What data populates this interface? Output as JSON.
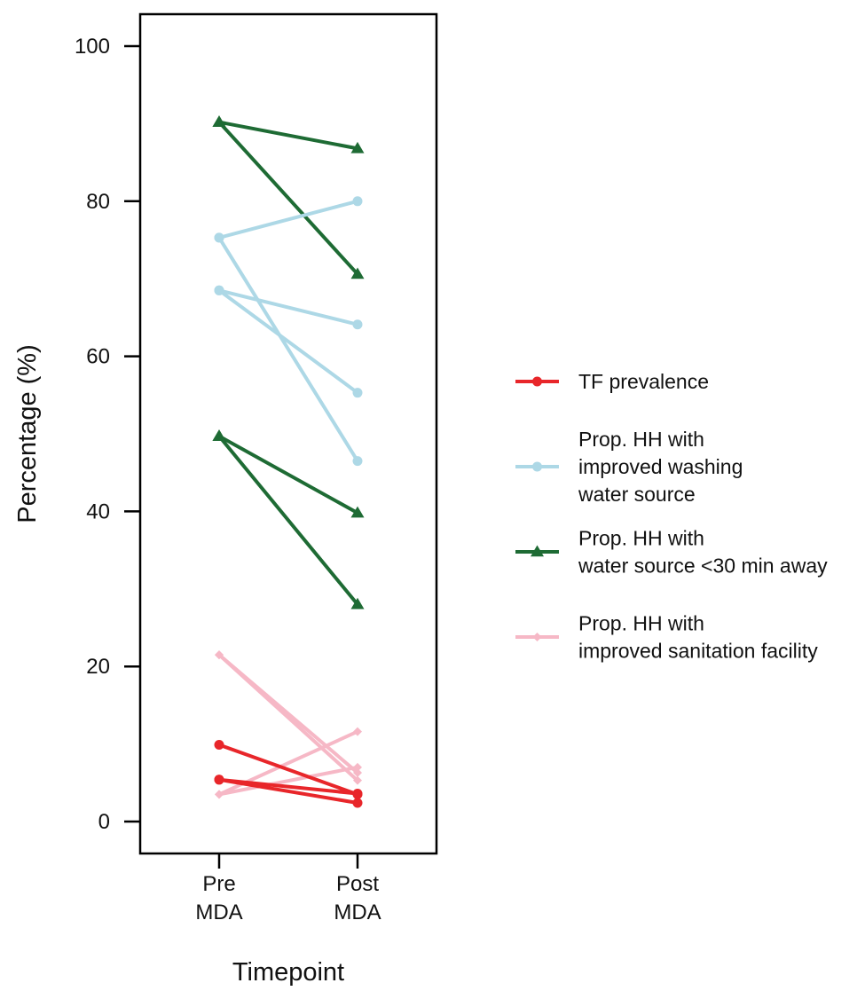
{
  "chart_data": {
    "type": "line",
    "xlabel": "Timepoint",
    "ylabel": "Percentage (%)",
    "ylim": [
      0,
      100
    ],
    "yticks": [
      0,
      20,
      40,
      60,
      80,
      100
    ],
    "categories": [
      [
        "Pre",
        "MDA"
      ],
      [
        "Post",
        "MDA"
      ]
    ],
    "grid": false,
    "legend_position": "right",
    "series": [
      {
        "name": "TF prevalence",
        "color": "#e8262a",
        "marker": "circle",
        "lines": [
          [
            9.9,
            3.5
          ],
          [
            5.4,
            2.4
          ],
          [
            5.4,
            3.6
          ]
        ]
      },
      {
        "name": "Prop. HH with improved washing water source",
        "legend_lines": [
          "Prop. HH with",
          "improved washing",
          "water source"
        ],
        "color": "#add8e6",
        "marker": "circle",
        "lines": [
          [
            75.3,
            80.0
          ],
          [
            75.3,
            46.5
          ],
          [
            68.5,
            64.1
          ],
          [
            68.5,
            55.3
          ]
        ]
      },
      {
        "name": "Prop. HH with water source <30 min away",
        "legend_lines": [
          "Prop. HH with",
          "water source <30 min away"
        ],
        "color": "#1e6b34",
        "marker": "triangle",
        "lines": [
          [
            90.2,
            86.8
          ],
          [
            90.2,
            70.6
          ],
          [
            49.7,
            39.8
          ],
          [
            49.7,
            28.0
          ]
        ]
      },
      {
        "name": "Prop. HH with improved sanitation facility",
        "legend_lines": [
          "Prop. HH with",
          "improved sanitation facility"
        ],
        "color": "#f6b8c6",
        "marker": "diamond",
        "lines": [
          [
            21.5,
            6.3
          ],
          [
            21.5,
            5.3
          ],
          [
            3.5,
            11.6
          ],
          [
            3.5,
            7.0
          ]
        ]
      }
    ]
  }
}
